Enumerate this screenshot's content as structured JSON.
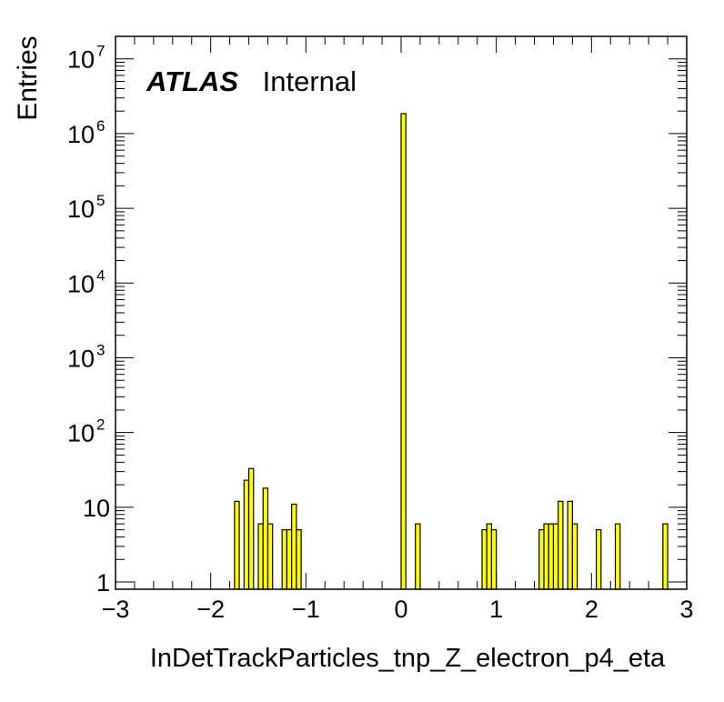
{
  "chart_data": {
    "type": "bar",
    "xlabel": "InDetTrackParticles_tnp_Z_electron_p4_eta",
    "ylabel": "Entries",
    "xlim": [
      -3,
      3
    ],
    "ylim": [
      0.8,
      20000000
    ],
    "log_y": true,
    "bin_width": 0.05,
    "bar_color": "#ffff00",
    "edge_color": "#000000",
    "grid": false,
    "x_ticks": [
      {
        "value": -3,
        "label": "−3"
      },
      {
        "value": -2,
        "label": "−2"
      },
      {
        "value": -1,
        "label": "−1"
      },
      {
        "value": 0,
        "label": "0"
      },
      {
        "value": 1,
        "label": "1"
      },
      {
        "value": 2,
        "label": "2"
      },
      {
        "value": 3,
        "label": "3"
      }
    ],
    "y_ticks": [
      {
        "value": 1,
        "base": "1",
        "exp": ""
      },
      {
        "value": 10,
        "base": "10",
        "exp": ""
      },
      {
        "value": 100,
        "base": "10",
        "exp": "2"
      },
      {
        "value": 1000,
        "base": "10",
        "exp": "3"
      },
      {
        "value": 10000,
        "base": "10",
        "exp": "4"
      },
      {
        "value": 100000,
        "base": "10",
        "exp": "5"
      },
      {
        "value": 1000000,
        "base": "10",
        "exp": "6"
      },
      {
        "value": 10000000,
        "base": "10",
        "exp": "7"
      }
    ],
    "bins": [
      {
        "x0": -1.75,
        "x1": -1.7,
        "y": 12
      },
      {
        "x0": -1.65,
        "x1": -1.6,
        "y": 23
      },
      {
        "x0": -1.6,
        "x1": -1.55,
        "y": 33
      },
      {
        "x0": -1.5,
        "x1": -1.45,
        "y": 6
      },
      {
        "x0": -1.45,
        "x1": -1.4,
        "y": 18
      },
      {
        "x0": -1.4,
        "x1": -1.35,
        "y": 6
      },
      {
        "x0": -1.25,
        "x1": -1.2,
        "y": 5
      },
      {
        "x0": -1.2,
        "x1": -1.15,
        "y": 5
      },
      {
        "x0": -1.15,
        "x1": -1.1,
        "y": 11
      },
      {
        "x0": -1.1,
        "x1": -1.05,
        "y": 5
      },
      {
        "x0": 0.0,
        "x1": 0.05,
        "y": 1850000
      },
      {
        "x0": 0.15,
        "x1": 0.2,
        "y": 6
      },
      {
        "x0": 0.85,
        "x1": 0.9,
        "y": 5
      },
      {
        "x0": 0.9,
        "x1": 0.95,
        "y": 6
      },
      {
        "x0": 0.95,
        "x1": 1.0,
        "y": 5
      },
      {
        "x0": 1.45,
        "x1": 1.5,
        "y": 5
      },
      {
        "x0": 1.5,
        "x1": 1.55,
        "y": 6
      },
      {
        "x0": 1.55,
        "x1": 1.6,
        "y": 6
      },
      {
        "x0": 1.6,
        "x1": 1.65,
        "y": 6
      },
      {
        "x0": 1.65,
        "x1": 1.7,
        "y": 12
      },
      {
        "x0": 1.75,
        "x1": 1.8,
        "y": 12
      },
      {
        "x0": 1.8,
        "x1": 1.85,
        "y": 6
      },
      {
        "x0": 2.05,
        "x1": 2.1,
        "y": 5
      },
      {
        "x0": 2.25,
        "x1": 2.3,
        "y": 6
      },
      {
        "x0": 2.75,
        "x1": 2.8,
        "y": 6
      }
    ],
    "annotation": {
      "bold": "ATLAS",
      "normal": "Internal"
    }
  }
}
